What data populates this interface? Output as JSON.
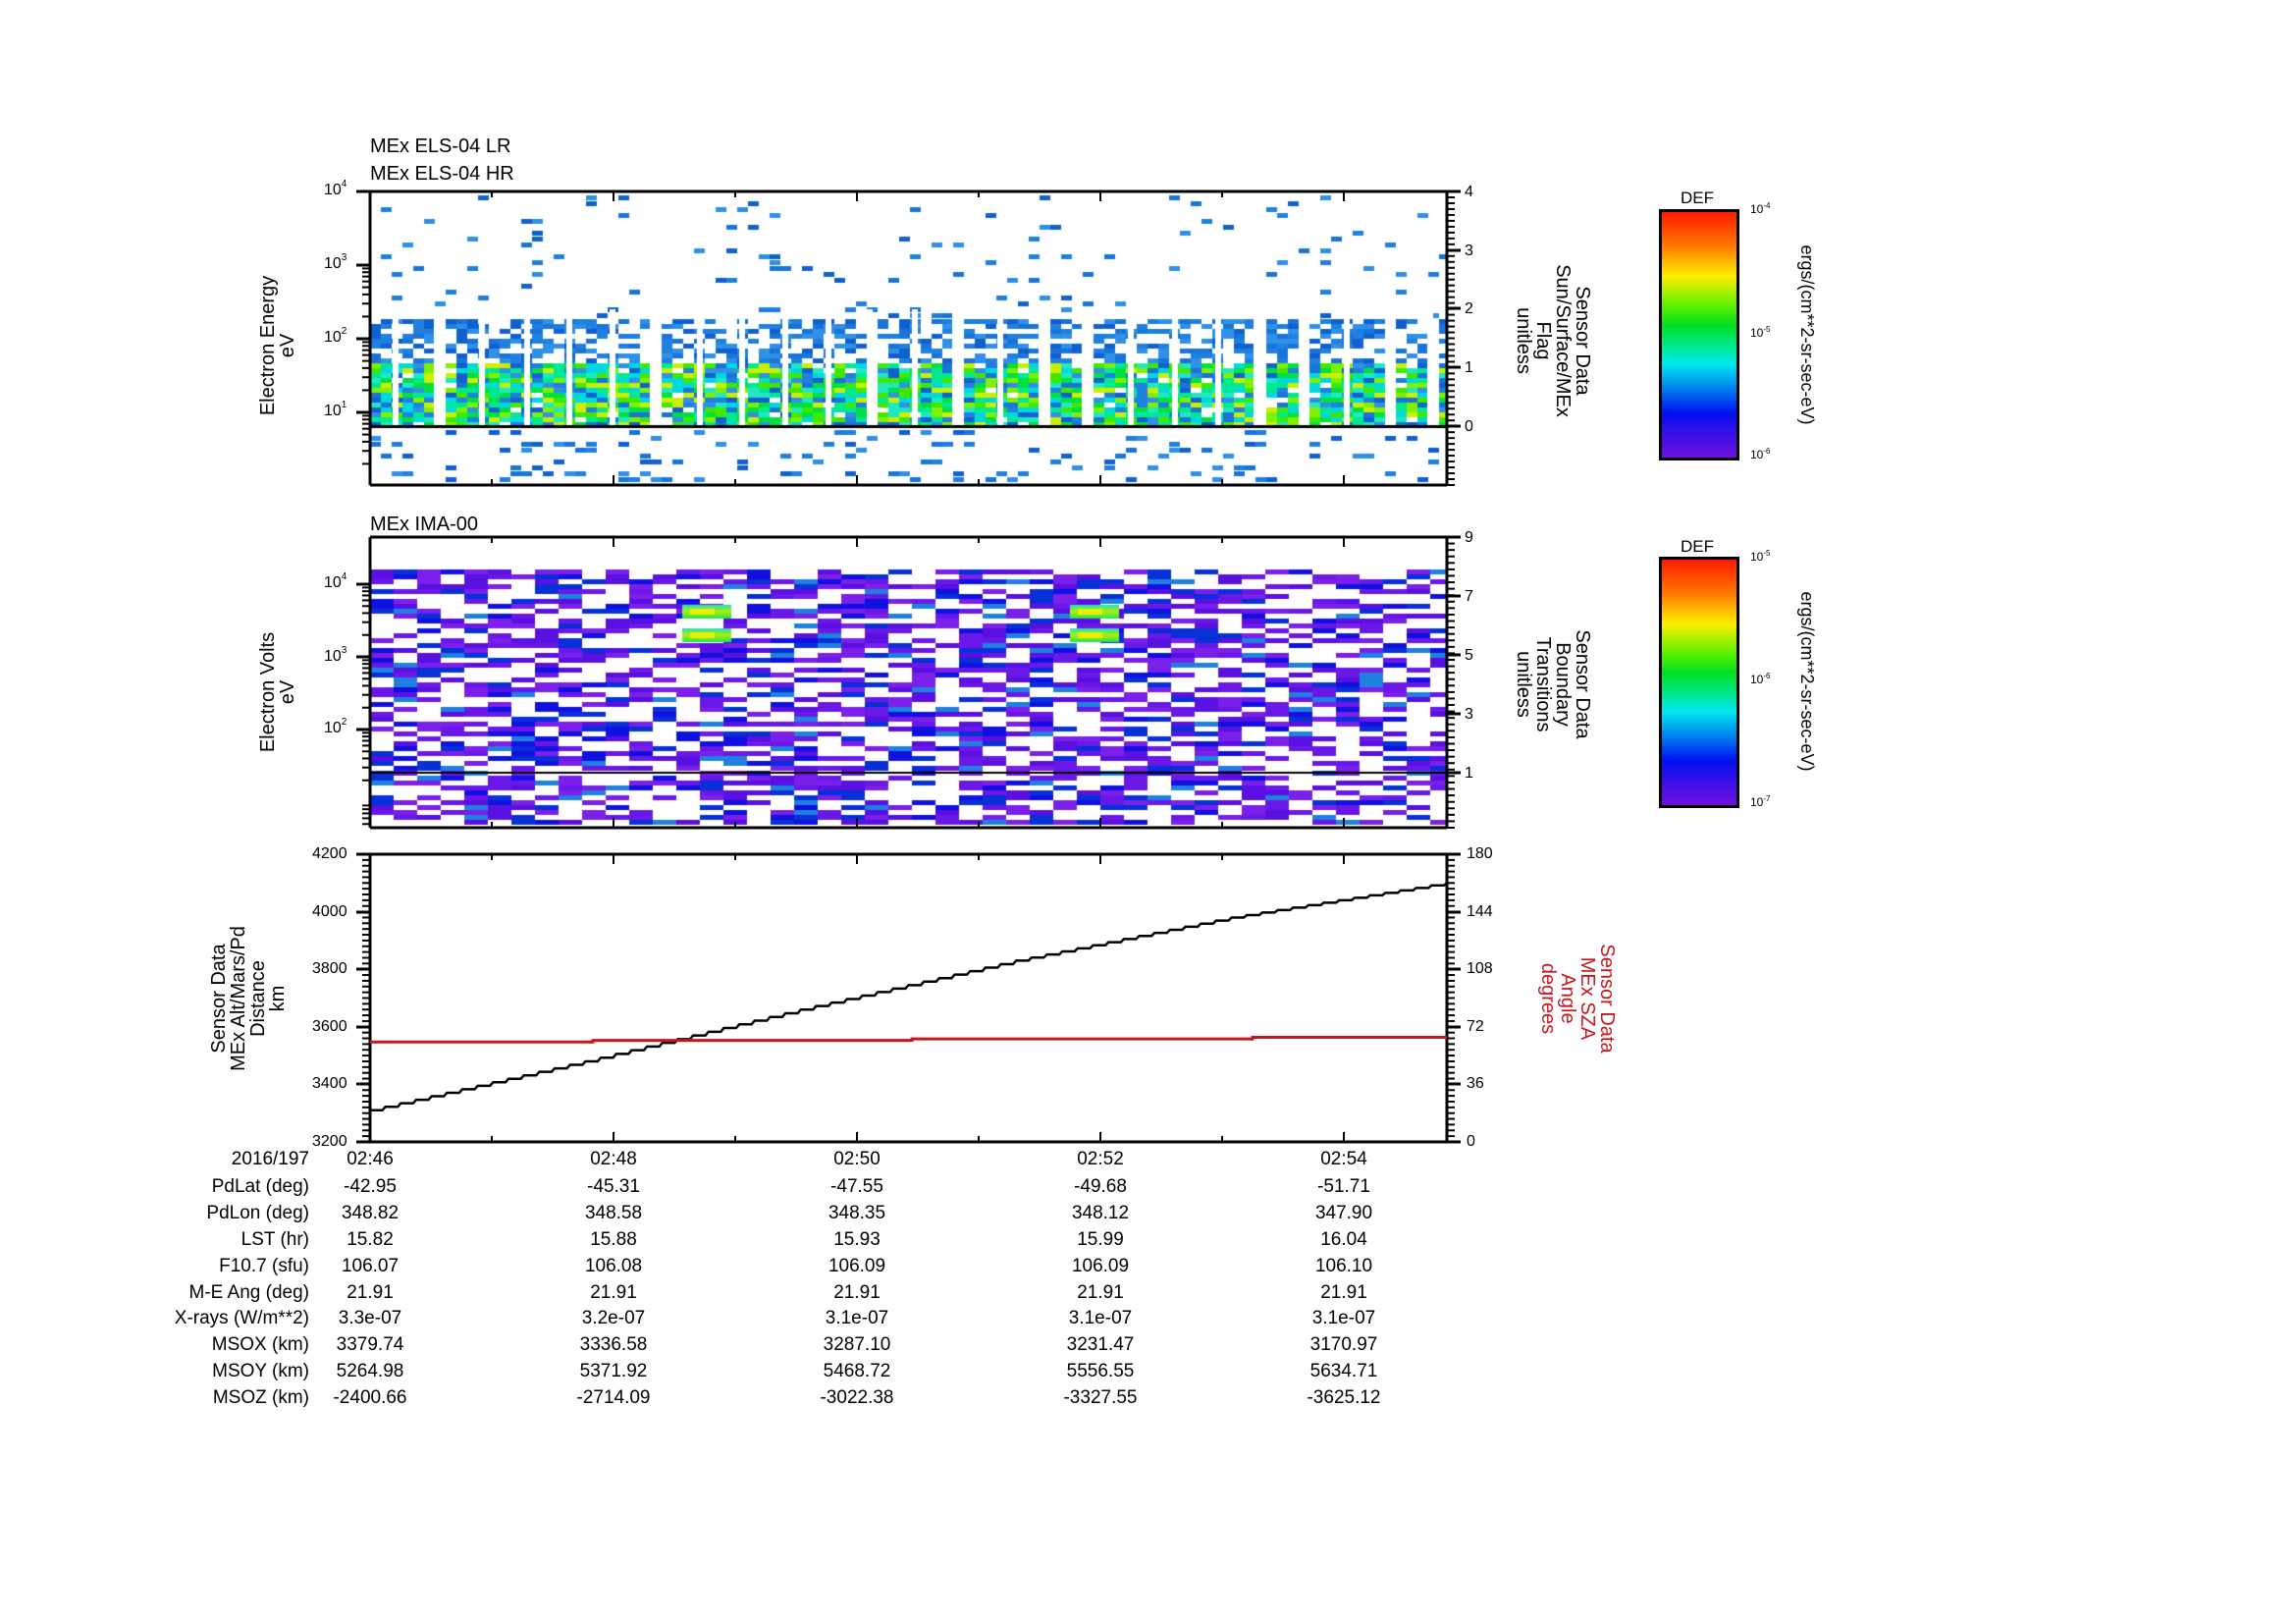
{
  "panels": [
    {
      "id": "els",
      "titles": [
        "MEx ELS-04 LR",
        "MEx ELS-04 HR"
      ],
      "type": "spectrogram",
      "ylabel_left": [
        "Electron Energy",
        "eV"
      ],
      "yticks_left": [
        {
          "base": "10",
          "exp": "4"
        },
        {
          "base": "10",
          "exp": "3"
        },
        {
          "base": "10",
          "exp": "2"
        },
        {
          "base": "10",
          "exp": "1"
        }
      ],
      "ylabel_right": [
        "Sensor Data",
        "Sun/Surface/MEx",
        "Flag",
        "unitless"
      ],
      "yticks_right": [
        "4",
        "3",
        "2",
        "1",
        "0"
      ],
      "colorbar": {
        "title": "DEF",
        "top": {
          "base": "10",
          "exp": "-4"
        },
        "mid": {
          "base": "10",
          "exp": "-5"
        },
        "bottom": {
          "base": "10",
          "exp": "-6"
        },
        "units": "ergs/(cm**2-sr-sec-eV)"
      }
    },
    {
      "id": "ima",
      "titles": [
        "MEx IMA-00"
      ],
      "type": "spectrogram",
      "ylabel_left": [
        "Electron Volts",
        "eV"
      ],
      "yticks_left": [
        {
          "base": "10",
          "exp": "4"
        },
        {
          "base": "10",
          "exp": "3"
        },
        {
          "base": "10",
          "exp": "2"
        }
      ],
      "ylabel_right": [
        "Sensor Data",
        "Boundary",
        "Transitions",
        "unitless"
      ],
      "yticks_right": [
        "9",
        "7",
        "5",
        "3",
        "1"
      ],
      "colorbar": {
        "title": "DEF",
        "top": {
          "base": "10",
          "exp": "-5"
        },
        "mid": {
          "base": "10",
          "exp": "-6"
        },
        "bottom": {
          "base": "10",
          "exp": "-7"
        },
        "units": "ergs/(cm**2-sr-sec-eV)"
      }
    },
    {
      "id": "alt",
      "type": "line",
      "ylabel_left": [
        "Sensor Data",
        "MEx Alt/Mars/Pd",
        "Distance",
        "km"
      ],
      "yticks_left": [
        "4200",
        "4000",
        "3800",
        "3600",
        "3400",
        "3200"
      ],
      "ylabel_right": [
        "Sensor Data",
        "MEx SZA",
        "Angle",
        "degrees"
      ],
      "yticks_right": [
        "180",
        "144",
        "108",
        "72",
        "36",
        "0"
      ]
    }
  ],
  "xaxis": {
    "date": "2016/197",
    "ticks": [
      "02:46",
      "02:48",
      "02:50",
      "02:52",
      "02:54"
    ]
  },
  "ephemeris": {
    "rows": [
      {
        "label": "PdLat (deg)",
        "values": [
          "-42.95",
          "-45.31",
          "-47.55",
          "-49.68",
          "-51.71"
        ]
      },
      {
        "label": "PdLon (deg)",
        "values": [
          "348.82",
          "348.58",
          "348.35",
          "348.12",
          "347.90"
        ]
      },
      {
        "label": "LST (hr)",
        "values": [
          "15.82",
          "15.88",
          "15.93",
          "15.99",
          "16.04"
        ]
      },
      {
        "label": "F10.7 (sfu)",
        "values": [
          "106.07",
          "106.08",
          "106.09",
          "106.09",
          "106.10"
        ]
      },
      {
        "label": "M-E Ang (deg)",
        "values": [
          "21.91",
          "21.91",
          "21.91",
          "21.91",
          "21.91"
        ]
      },
      {
        "label": "X-rays (W/m**2)",
        "values": [
          "3.3e-07",
          "3.2e-07",
          "3.1e-07",
          "3.1e-07",
          "3.1e-07"
        ]
      },
      {
        "label": "MSOX (km)",
        "values": [
          "3379.74",
          "3336.58",
          "3287.10",
          "3231.47",
          "3170.97"
        ]
      },
      {
        "label": "MSOY (km)",
        "values": [
          "5264.98",
          "5371.92",
          "5468.72",
          "5556.55",
          "5634.71"
        ]
      },
      {
        "label": "MSOZ (km)",
        "values": [
          "-2400.66",
          "-2714.09",
          "-3022.38",
          "-3327.55",
          "-3625.12"
        ]
      }
    ]
  },
  "colors": {
    "altitude_line": "#000000",
    "sza_line": "#c8161c",
    "flag_line": "#000000"
  },
  "chart_data": [
    {
      "type": "heatmap",
      "title": "MEx ELS-04 LR / MEx ELS-04 HR",
      "xlabel": "UT (2016/197)",
      "ylabel": "Electron Energy (eV)",
      "yscale": "log",
      "ylim": [
        1.5,
        10000
      ],
      "x_ticks": [
        "02:46",
        "02:48",
        "02:50",
        "02:52",
        "02:54"
      ],
      "colorbar": {
        "label": "DEF ergs/(cm**2-sr-sec-eV)",
        "range": [
          1e-06,
          0.0001
        ],
        "scale": "log"
      },
      "description": "Dense green/yellow fluxes between ~7 eV and ~150 eV, sparse blue pixels up to 10^4 eV; periodic vertical data gaps.",
      "overlay": {
        "name": "Sun/Surface/MEx Flag",
        "units": "unitless",
        "ylim": [
          -0.9,
          4
        ],
        "value": 0
      }
    },
    {
      "type": "heatmap",
      "title": "MEx IMA-00",
      "xlabel": "UT (2016/197)",
      "ylabel": "Electron Volts (eV)",
      "yscale": "log",
      "colorbar": {
        "label": "DEF ergs/(cm**2-sr-sec-eV)",
        "range": [
          1e-07,
          1e-05
        ],
        "scale": "log"
      },
      "description": "Mostly low-level purple/blue counts across energies; two localized enhancements (green/yellow) near 2-5 keV around 02:49 and 02:52.",
      "overlay": {
        "name": "Boundary Transitions",
        "units": "unitless",
        "ylim": [
          -0.7,
          9
        ],
        "value": 1
      }
    },
    {
      "type": "line",
      "title": "",
      "xlabel": "UT (2016/197)",
      "x": [
        "02:46",
        "02:48",
        "02:50",
        "02:52",
        "02:54",
        "02:55"
      ],
      "series": [
        {
          "name": "MEx Alt/Mars/Pd Distance (km)",
          "axis": "left",
          "values": [
            3310,
            3480,
            3660,
            3830,
            3980,
            4100
          ]
        },
        {
          "name": "MEx SZA Angle (degrees)",
          "axis": "right",
          "values": [
            62.5,
            63.5,
            63.5,
            64.5,
            65.5,
            65.5
          ]
        }
      ],
      "ylim_left": [
        3200,
        4200
      ],
      "ylim_right": [
        0,
        180
      ]
    }
  ]
}
